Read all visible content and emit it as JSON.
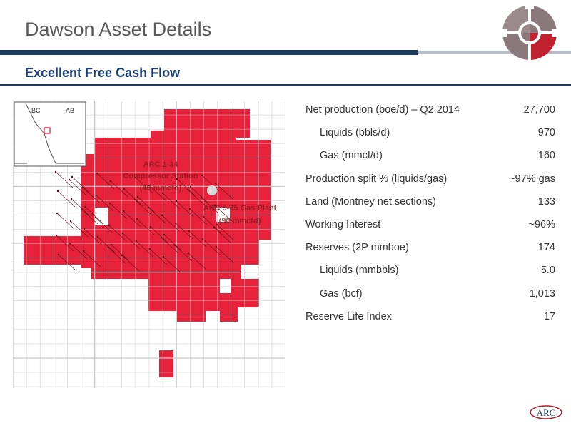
{
  "header": {
    "title": "Dawson Asset Details",
    "subtitle": "Excellent Free Cash Flow"
  },
  "map": {
    "inset_labels": [
      "BC",
      "AB"
    ],
    "facilities": [
      {
        "name_line1": "ARC 1-34",
        "name_line2": "Compressor Station",
        "capacity": "(45 mmcfd)"
      },
      {
        "name_line1": "ARC 5-35 Gas Plant",
        "capacity": "(90 mmcfd)"
      }
    ],
    "colors": {
      "land": "#e8213a",
      "grid": "#c7c7c7",
      "wells": "#5a1010"
    }
  },
  "stats": [
    {
      "label": "Net production (boe/d) – Q2 2014",
      "value": "27,700",
      "indent": false
    },
    {
      "label": "Liquids (bbls/d)",
      "value": "970",
      "indent": true
    },
    {
      "label": "Gas (mmcf/d)",
      "value": "160",
      "indent": true
    },
    {
      "label": "Production split % (liquids/gas)",
      "value": "~97% gas",
      "indent": false
    },
    {
      "label": "Land (Montney net sections)",
      "value": "133",
      "indent": false
    },
    {
      "label": "Working Interest",
      "value": "~96%",
      "indent": false
    },
    {
      "label": "Reserves (2P mmboe)",
      "value": "174",
      "indent": false
    },
    {
      "label": "Liquids (mmbbls)",
      "value": "5.0",
      "indent": true
    },
    {
      "label": "Gas (bcf)",
      "value": "1,013",
      "indent": true
    },
    {
      "label": "Reserve Life Index",
      "value": "17",
      "indent": false
    }
  ],
  "branding": {
    "logo_text": "ARC",
    "logo_icon": "compass-wheel-icon",
    "accent": "#b01e2c",
    "navy": "#1d3a5f"
  }
}
